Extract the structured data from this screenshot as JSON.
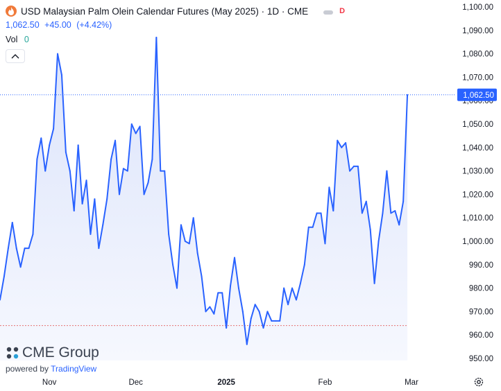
{
  "header": {
    "title": "USD Malaysian Palm Olein Calendar Futures (May 2025) · 1D · CME",
    "badge": "D",
    "last_price": "1,062.50",
    "change": "+45.00",
    "change_pct": "(+4.42%)",
    "volume_label": "Vol",
    "volume_value": "0"
  },
  "watermark": {
    "brand": "CME Group",
    "powered_by": "powered by",
    "platform": "TradingView"
  },
  "colors": {
    "line": "#2962ff",
    "area_top": "#dbe3fb",
    "area_bottom": "#f6f8fe",
    "price_label_bg": "#2962ff",
    "reference_line": "#e57373",
    "symbol_icon": "#f07a3a"
  },
  "chart_data": {
    "type": "area",
    "title": "USD Malaysian Palm Olein Calendar Futures (May 2025) · 1D · CME",
    "ylim": [
      945,
      1100
    ],
    "y_ticks": [
      950,
      960,
      970,
      980,
      990,
      1000,
      1010,
      1020,
      1030,
      1040,
      1050,
      1060,
      1070,
      1080,
      1090,
      1100
    ],
    "y_tick_labels": [
      "950.00",
      "960.00",
      "970.00",
      "980.00",
      "990.00",
      "1,000.00",
      "1,010.00",
      "1,020.00",
      "1,030.00",
      "1,040.00",
      "1,050.00",
      "1,060.00",
      "1,070.00",
      "1,080.00",
      "1,090.00",
      "1,100.00"
    ],
    "x_ticks": [
      {
        "label": "Nov",
        "index": 12
      },
      {
        "label": "Dec",
        "index": 33
      },
      {
        "label": "2025",
        "index": 55
      },
      {
        "label": "Feb",
        "index": 79
      },
      {
        "label": "Mar",
        "index": 100
      }
    ],
    "last_value": 1062.5,
    "last_value_label": "1,062.50",
    "reference_value": 964,
    "series": [
      {
        "values": [
          975,
          985,
          997,
          1008,
          997,
          989,
          997,
          997,
          1003,
          1035,
          1044,
          1030,
          1041,
          1048,
          1080,
          1071,
          1038,
          1030,
          1013,
          1041,
          1016,
          1026,
          1003,
          1018,
          997,
          1007,
          1018,
          1035,
          1043,
          1020,
          1031,
          1030,
          1050,
          1046,
          1049,
          1020,
          1025,
          1035,
          1087,
          1030,
          1030,
          1003,
          990,
          980,
          1007,
          1000,
          999,
          1010,
          995,
          985,
          970,
          972,
          969,
          978,
          978,
          963,
          981,
          993,
          980,
          970,
          956,
          967,
          973,
          970,
          963,
          970,
          966,
          966,
          966,
          980,
          973,
          980,
          975,
          982,
          990,
          1006,
          1006,
          1012,
          1012,
          999,
          1023,
          1013,
          1043,
          1040,
          1042,
          1030,
          1032,
          1032,
          1012,
          1017,
          1005,
          982,
          1000,
          1012,
          1030,
          1012,
          1013,
          1007,
          1017,
          1062.5
        ]
      }
    ]
  }
}
